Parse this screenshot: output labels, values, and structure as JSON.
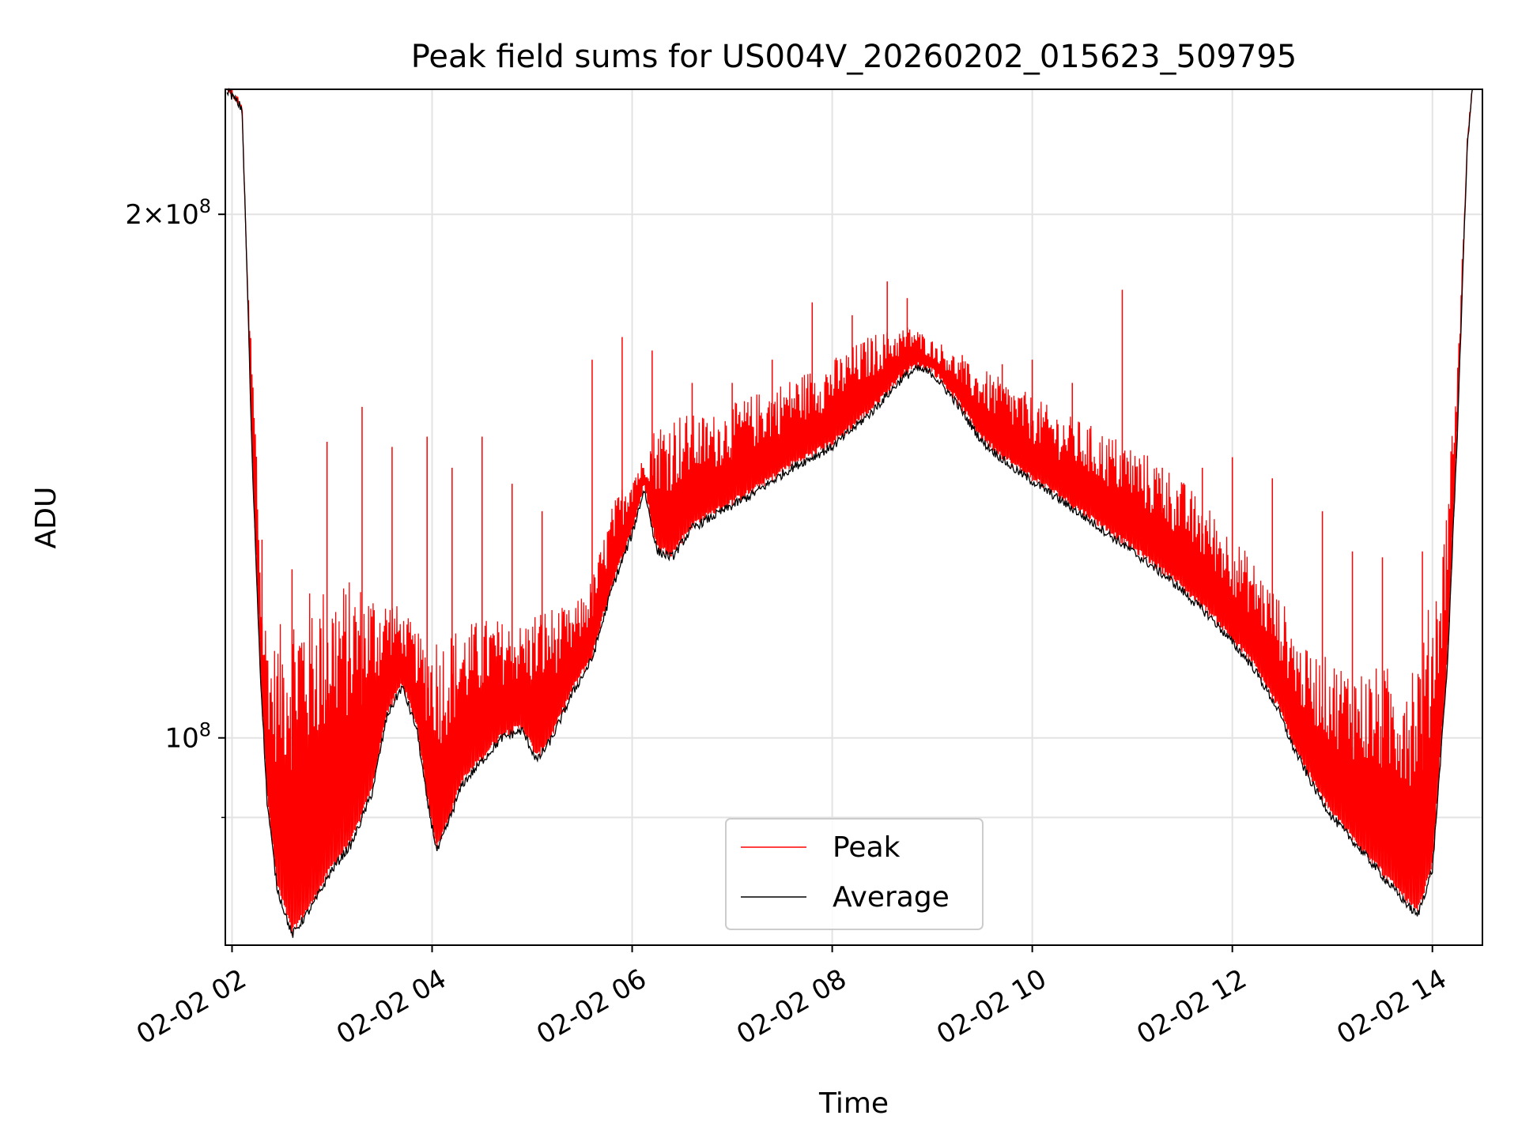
{
  "chart_data": {
    "type": "line",
    "title": "Peak field sums for US004V_20260202_015623_509795",
    "xlabel": "Time",
    "ylabel": "ADU",
    "x_range_hours": [
      1.933,
      14.5
    ],
    "ylim": [
      76000000,
      236000000
    ],
    "y_scale": "log",
    "grid": true,
    "legend_position": "lower center",
    "x_ticks": [
      {
        "hour": 2,
        "label": "02-02 02"
      },
      {
        "hour": 4,
        "label": "02-02 04"
      },
      {
        "hour": 6,
        "label": "02-02 06"
      },
      {
        "hour": 8,
        "label": "02-02 08"
      },
      {
        "hour": 10,
        "label": "02-02 10"
      },
      {
        "hour": 12,
        "label": "02-02 12"
      },
      {
        "hour": 14,
        "label": "02-02 14"
      }
    ],
    "y_major_ticks": [
      {
        "value": 100000000,
        "base": "10",
        "exp": "8"
      },
      {
        "value": 200000000,
        "base": "2×10",
        "exp": "8"
      }
    ],
    "y_minor_ticks": [
      90000000
    ],
    "series": [
      {
        "name": "Peak",
        "color": "#ff0000",
        "points": [
          [
            1.95,
            236000000
          ],
          [
            2.1,
            230000000
          ],
          [
            2.15,
            185000000
          ],
          [
            2.25,
            140000000
          ],
          [
            2.3,
            115000000
          ],
          [
            2.4,
            105000000
          ],
          [
            2.6,
            108000000
          ],
          [
            2.8,
            110000000
          ],
          [
            3.0,
            112000000
          ],
          [
            3.2,
            113000000
          ],
          [
            3.4,
            114000000
          ],
          [
            3.6,
            116000000
          ],
          [
            3.75,
            114000000
          ],
          [
            3.95,
            108000000
          ],
          [
            4.1,
            107000000
          ],
          [
            4.3,
            110000000
          ],
          [
            4.6,
            112000000
          ],
          [
            4.9,
            112000000
          ],
          [
            5.1,
            113000000
          ],
          [
            5.4,
            115000000
          ],
          [
            5.6,
            120000000
          ],
          [
            5.8,
            132000000
          ],
          [
            6.0,
            140000000
          ],
          [
            6.2,
            145000000
          ],
          [
            6.5,
            147000000
          ],
          [
            6.8,
            148000000
          ],
          [
            7.2,
            152000000
          ],
          [
            7.6,
            156000000
          ],
          [
            8.0,
            160000000
          ],
          [
            8.4,
            166000000
          ],
          [
            8.8,
            170000000
          ],
          [
            9.1,
            166000000
          ],
          [
            9.4,
            160000000
          ],
          [
            9.8,
            155000000
          ],
          [
            10.2,
            150000000
          ],
          [
            10.6,
            146000000
          ],
          [
            11.0,
            142000000
          ],
          [
            11.4,
            137000000
          ],
          [
            11.8,
            130000000
          ],
          [
            12.2,
            122000000
          ],
          [
            12.5,
            115000000
          ],
          [
            12.7,
            108000000
          ],
          [
            13.0,
            105000000
          ],
          [
            13.3,
            103000000
          ],
          [
            13.6,
            102000000
          ],
          [
            13.9,
            104000000
          ],
          [
            14.1,
            120000000
          ],
          [
            14.25,
            160000000
          ],
          [
            14.35,
            220000000
          ],
          [
            14.4,
            236000000
          ]
        ],
        "spikes": [
          [
            2.3,
            130000000
          ],
          [
            2.6,
            125000000
          ],
          [
            2.95,
            148000000
          ],
          [
            3.3,
            155000000
          ],
          [
            3.6,
            147000000
          ],
          [
            3.95,
            149000000
          ],
          [
            4.2,
            143000000
          ],
          [
            4.5,
            149000000
          ],
          [
            4.8,
            140000000
          ],
          [
            5.1,
            135000000
          ],
          [
            5.6,
            165000000
          ],
          [
            5.9,
            170000000
          ],
          [
            6.2,
            167000000
          ],
          [
            6.6,
            160000000
          ],
          [
            7.0,
            160000000
          ],
          [
            7.4,
            165000000
          ],
          [
            7.8,
            178000000
          ],
          [
            8.2,
            175000000
          ],
          [
            8.55,
            183000000
          ],
          [
            8.75,
            179000000
          ],
          [
            9.3,
            166000000
          ],
          [
            9.7,
            164000000
          ],
          [
            10.0,
            165000000
          ],
          [
            10.4,
            160000000
          ],
          [
            10.9,
            181000000
          ],
          [
            11.3,
            143000000
          ],
          [
            11.7,
            143000000
          ],
          [
            12.0,
            145000000
          ],
          [
            12.4,
            141000000
          ],
          [
            12.9,
            135000000
          ],
          [
            13.2,
            128000000
          ],
          [
            13.5,
            127000000
          ],
          [
            13.9,
            128000000
          ]
        ]
      },
      {
        "name": "Average",
        "color": "#000000",
        "points": [
          [
            1.95,
            236000000
          ],
          [
            2.1,
            230000000
          ],
          [
            2.15,
            185000000
          ],
          [
            2.2,
            145000000
          ],
          [
            2.28,
            110000000
          ],
          [
            2.35,
            92000000
          ],
          [
            2.45,
            82000000
          ],
          [
            2.6,
            77000000
          ],
          [
            2.8,
            80000000
          ],
          [
            3.0,
            84000000
          ],
          [
            3.2,
            87000000
          ],
          [
            3.4,
            93000000
          ],
          [
            3.55,
            103000000
          ],
          [
            3.7,
            107000000
          ],
          [
            3.85,
            101000000
          ],
          [
            3.95,
            92000000
          ],
          [
            4.05,
            86000000
          ],
          [
            4.15,
            89000000
          ],
          [
            4.3,
            94000000
          ],
          [
            4.5,
            97000000
          ],
          [
            4.7,
            100000000
          ],
          [
            4.9,
            101000000
          ],
          [
            5.05,
            97000000
          ],
          [
            5.2,
            100000000
          ],
          [
            5.4,
            106000000
          ],
          [
            5.6,
            111000000
          ],
          [
            5.8,
            122000000
          ],
          [
            6.0,
            131000000
          ],
          [
            6.12,
            139000000
          ],
          [
            6.25,
            128000000
          ],
          [
            6.4,
            127000000
          ],
          [
            6.6,
            132000000
          ],
          [
            6.8,
            134000000
          ],
          [
            7.2,
            138000000
          ],
          [
            7.6,
            143000000
          ],
          [
            8.0,
            147000000
          ],
          [
            8.4,
            154000000
          ],
          [
            8.7,
            161000000
          ],
          [
            8.85,
            163000000
          ],
          [
            9.0,
            162000000
          ],
          [
            9.2,
            157000000
          ],
          [
            9.5,
            148000000
          ],
          [
            9.8,
            143000000
          ],
          [
            10.2,
            138000000
          ],
          [
            10.6,
            133000000
          ],
          [
            11.0,
            128000000
          ],
          [
            11.4,
            123000000
          ],
          [
            11.8,
            117000000
          ],
          [
            12.2,
            110000000
          ],
          [
            12.45,
            104000000
          ],
          [
            12.6,
            99000000
          ],
          [
            12.8,
            94000000
          ],
          [
            13.0,
            90000000
          ],
          [
            13.3,
            86000000
          ],
          [
            13.6,
            82000000
          ],
          [
            13.85,
            79000000
          ],
          [
            14.0,
            84000000
          ],
          [
            14.15,
            110000000
          ],
          [
            14.25,
            150000000
          ],
          [
            14.35,
            220000000
          ],
          [
            14.4,
            236000000
          ]
        ]
      }
    ]
  }
}
